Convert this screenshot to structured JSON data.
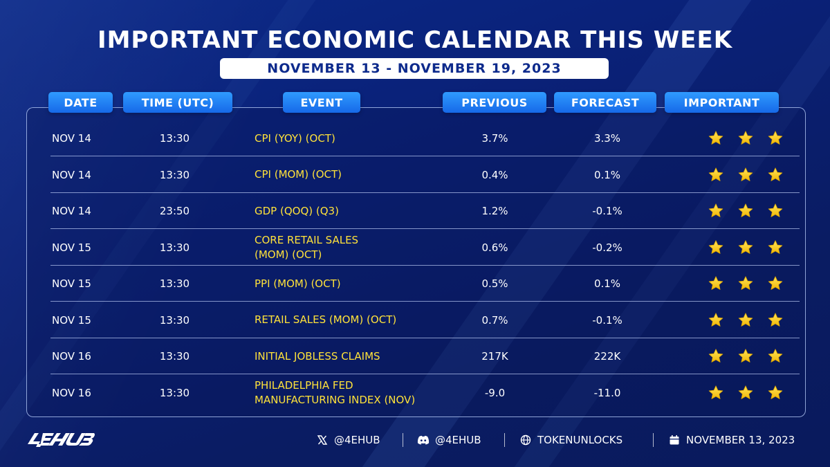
{
  "title": "IMPORTANT ECONOMIC CALENDAR THIS WEEK",
  "subtitle": "NOVEMBER 13 - NOVEMBER 19, 2023",
  "headers": {
    "date": "DATE",
    "time": "TIME (UTC)",
    "event": "EVENT",
    "previous": "PREVIOUS",
    "forecast": "FORECAST",
    "important": "IMPORTANT"
  },
  "rows": [
    {
      "date": "NOV 14",
      "time": "13:30",
      "event_line1": "CPI (YOY) (OCT)",
      "event_line2": "",
      "previous": "3.7%",
      "forecast": "3.3%",
      "stars": 3
    },
    {
      "date": "NOV 14",
      "time": "13:30",
      "event_line1": "CPI (MOM) (OCT)",
      "event_line2": "",
      "previous": "0.4%",
      "forecast": "0.1%",
      "stars": 3
    },
    {
      "date": "NOV 14",
      "time": "23:50",
      "event_line1": "GDP (QOQ) (Q3)",
      "event_line2": "",
      "previous": "1.2%",
      "forecast": "-0.1%",
      "stars": 3
    },
    {
      "date": "NOV 15",
      "time": "13:30",
      "event_line1": "CORE RETAIL SALES",
      "event_line2": "(MOM) (OCT)",
      "previous": "0.6%",
      "forecast": "-0.2%",
      "stars": 3
    },
    {
      "date": "NOV 15",
      "time": "13:30",
      "event_line1": "PPI (MOM) (OCT)",
      "event_line2": "",
      "previous": "0.5%",
      "forecast": "0.1%",
      "stars": 3
    },
    {
      "date": "NOV 15",
      "time": "13:30",
      "event_line1": "RETAIL SALES (MOM) (OCT)",
      "event_line2": "",
      "previous": "0.7%",
      "forecast": "-0.1%",
      "stars": 3
    },
    {
      "date": "NOV 16",
      "time": "13:30",
      "event_line1": "INITIAL JOBLESS CLAIMS",
      "event_line2": "",
      "previous": "217K",
      "forecast": "222K",
      "stars": 3
    },
    {
      "date": "NOV 16",
      "time": "13:30",
      "event_line1": "PHILADELPHIA FED",
      "event_line2": "MANUFACTURING INDEX (NOV)",
      "previous": "-9.0",
      "forecast": "-11.0",
      "stars": 3
    }
  ],
  "footer": {
    "logo": "4EHUB",
    "x_handle": "@4EHUB",
    "discord_handle": "@4EHUB",
    "website": "TOKENUNLOCKS",
    "date": "NOVEMBER 13, 2023",
    "icons": [
      "x-icon",
      "discord-icon",
      "globe-icon",
      "calendar-icon"
    ]
  },
  "colors": {
    "background": "#0a1f6e",
    "header_pill": "#1f7ff5",
    "event_text": "#ffe23a",
    "star": "#f7c81e"
  }
}
